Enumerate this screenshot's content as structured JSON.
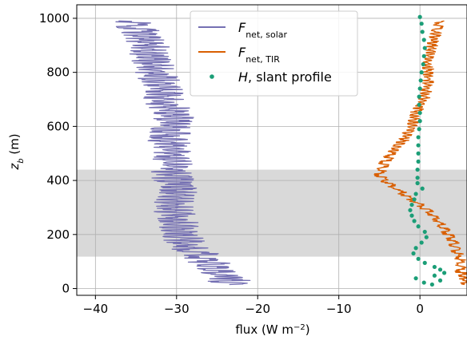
{
  "chart_data": {
    "type": "line",
    "title": "",
    "xlabel": "flux (W m⁻²)",
    "ylabel": "z_b (m)",
    "xlim": [
      -42.3,
      5.8
    ],
    "ylim": [
      -25,
      1050
    ],
    "xticks": [
      -40,
      -30,
      -20,
      -10,
      0
    ],
    "xtick_labels": [
      "−40",
      "−30",
      "−20",
      "−10",
      "0"
    ],
    "yticks": [
      0,
      200,
      400,
      600,
      800,
      1000
    ],
    "ytick_labels": [
      "0",
      "200",
      "400",
      "600",
      "800",
      "1000"
    ],
    "grid": true,
    "legend": {
      "placement": "top-center"
    },
    "shaded_band": {
      "y_range": [
        118,
        440
      ],
      "color": "#d9d9d9"
    },
    "series": [
      {
        "name": "F_net,solar",
        "legend_main": "F",
        "legend_sub": "net, solar",
        "style": "line",
        "color": "#7570b3",
        "points": [
          [
            -35.5,
            990
          ],
          [
            -34.5,
            950
          ],
          [
            -33.5,
            900
          ],
          [
            -33.0,
            850
          ],
          [
            -32.5,
            800
          ],
          [
            -32.0,
            750
          ],
          [
            -31.5,
            700
          ],
          [
            -30.5,
            650
          ],
          [
            -30.5,
            600
          ],
          [
            -31.0,
            550
          ],
          [
            -30.5,
            500
          ],
          [
            -30.5,
            450
          ],
          [
            -30.5,
            400
          ],
          [
            -29.5,
            350
          ],
          [
            -30.5,
            300
          ],
          [
            -30.0,
            250
          ],
          [
            -29.5,
            200
          ],
          [
            -28.5,
            150
          ],
          [
            -26.5,
            110
          ],
          [
            -25.5,
            80
          ],
          [
            -24.5,
            50
          ],
          [
            -23.5,
            30
          ],
          [
            -23.5,
            15
          ]
        ]
      },
      {
        "name": "F_net,TIR",
        "legend_main": "F",
        "legend_sub": "net, TIR",
        "style": "line",
        "color": "#d95f02",
        "points": [
          [
            2.5,
            990
          ],
          [
            2.0,
            950
          ],
          [
            1.5,
            900
          ],
          [
            1.0,
            850
          ],
          [
            1.0,
            800
          ],
          [
            1.0,
            750
          ],
          [
            0.5,
            700
          ],
          [
            -0.5,
            650
          ],
          [
            -1.0,
            600
          ],
          [
            -2.0,
            550
          ],
          [
            -3.5,
            500
          ],
          [
            -4.5,
            460
          ],
          [
            -5.0,
            420
          ],
          [
            -3.5,
            380
          ],
          [
            -1.5,
            340
          ],
          [
            0.5,
            300
          ],
          [
            2.0,
            260
          ],
          [
            3.0,
            220
          ],
          [
            4.0,
            180
          ],
          [
            4.5,
            140
          ],
          [
            5.0,
            100
          ],
          [
            5.0,
            60
          ],
          [
            5.5,
            30
          ],
          [
            5.5,
            15
          ]
        ]
      },
      {
        "name": "H, slant profile",
        "legend_main": "H",
        "legend_sub": ", slant profile",
        "style": "scatter",
        "color": "#1b9e77",
        "points": [
          [
            0.0,
            1005
          ],
          [
            0.2,
            980
          ],
          [
            0.3,
            950
          ],
          [
            0.5,
            920
          ],
          [
            0.6,
            890
          ],
          [
            0.5,
            860
          ],
          [
            0.4,
            830
          ],
          [
            0.2,
            800
          ],
          [
            0.1,
            770
          ],
          [
            0.0,
            740
          ],
          [
            -0.1,
            710
          ],
          [
            -0.1,
            680
          ],
          [
            0.0,
            650
          ],
          [
            0.0,
            620
          ],
          [
            -0.1,
            590
          ],
          [
            -0.2,
            560
          ],
          [
            -0.2,
            530
          ],
          [
            -0.2,
            500
          ],
          [
            -0.2,
            470
          ],
          [
            -0.3,
            440
          ],
          [
            -0.3,
            410
          ],
          [
            -0.3,
            390
          ],
          [
            0.3,
            370
          ],
          [
            -0.5,
            350
          ],
          [
            -0.7,
            330
          ],
          [
            -1.0,
            310
          ],
          [
            -1.2,
            290
          ],
          [
            -1.0,
            270
          ],
          [
            -0.7,
            250
          ],
          [
            -0.2,
            230
          ],
          [
            0.6,
            210
          ],
          [
            0.8,
            190
          ],
          [
            0.2,
            170
          ],
          [
            -0.5,
            150
          ],
          [
            -0.8,
            130
          ],
          [
            -0.2,
            110
          ],
          [
            0.6,
            95
          ],
          [
            1.8,
            80
          ],
          [
            2.5,
            70
          ],
          [
            3.0,
            58
          ],
          [
            1.8,
            48
          ],
          [
            -0.5,
            38
          ],
          [
            2.5,
            30
          ],
          [
            0.5,
            22
          ],
          [
            1.5,
            15
          ]
        ]
      }
    ]
  }
}
